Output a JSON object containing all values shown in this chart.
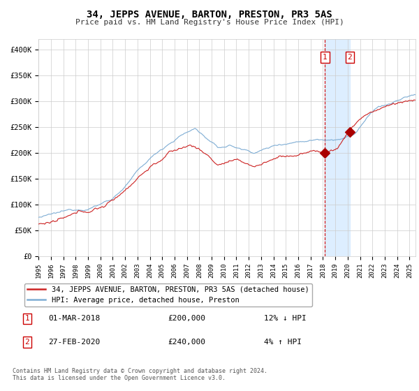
{
  "title": "34, JEPPS AVENUE, BARTON, PRESTON, PR3 5AS",
  "subtitle": "Price paid vs. HM Land Registry's House Price Index (HPI)",
  "ylabel_ticks": [
    "£0",
    "£50K",
    "£100K",
    "£150K",
    "£200K",
    "£250K",
    "£300K",
    "£350K",
    "£400K"
  ],
  "ytick_values": [
    0,
    50000,
    100000,
    150000,
    200000,
    250000,
    300000,
    350000,
    400000
  ],
  "ylim": [
    0,
    420000
  ],
  "xlim_start": 1995.0,
  "xlim_end": 2025.5,
  "hpi_color": "#7eadd4",
  "price_color": "#cc2222",
  "marker_color": "#aa0000",
  "vline_color": "#cc0000",
  "highlight_color": "#ddeeff",
  "legend_label_price": "34, JEPPS AVENUE, BARTON, PRESTON, PR3 5AS (detached house)",
  "legend_label_hpi": "HPI: Average price, detached house, Preston",
  "transaction1_label": "1",
  "transaction1_date": "01-MAR-2018",
  "transaction1_price": "£200,000",
  "transaction1_hpi": "12% ↓ HPI",
  "transaction1_x": 2018.17,
  "transaction1_y": 200000,
  "transaction2_label": "2",
  "transaction2_date": "27-FEB-2020",
  "transaction2_price": "£240,000",
  "transaction2_hpi": "4% ↑ HPI",
  "transaction2_x": 2020.16,
  "transaction2_y": 240000,
  "footer": "Contains HM Land Registry data © Crown copyright and database right 2024.\nThis data is licensed under the Open Government Licence v3.0.",
  "background_color": "#ffffff",
  "grid_color": "#cccccc"
}
